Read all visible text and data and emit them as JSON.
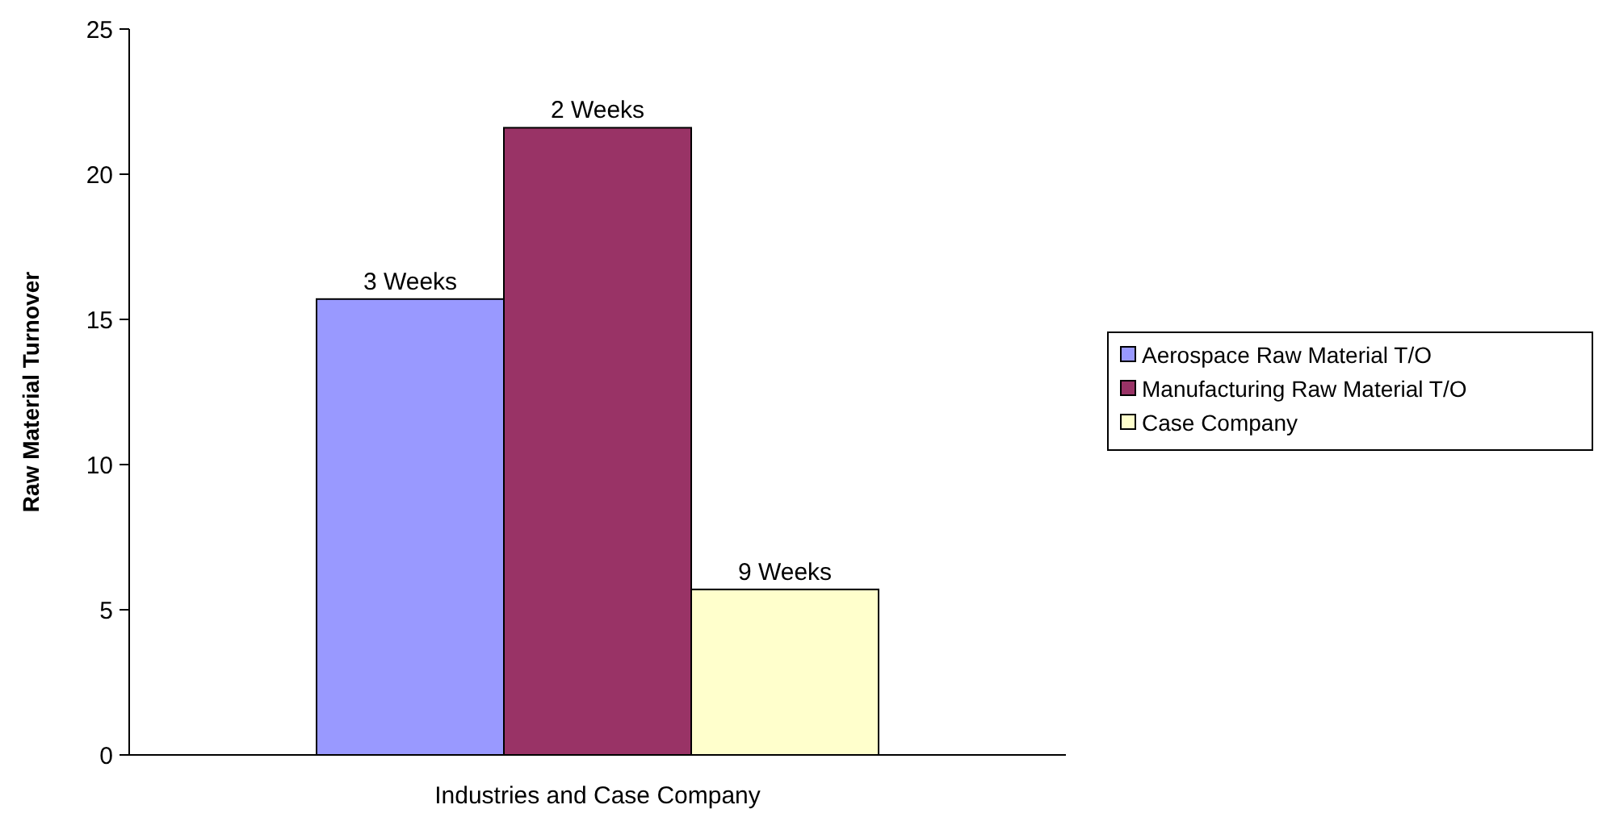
{
  "chart_data": {
    "type": "bar",
    "xlabel": "Industries and Case Company",
    "ylabel": "Raw Material Turnover",
    "categories": [
      null
    ],
    "series": [
      {
        "name": "Aerospace Raw Material T/O",
        "color": "#9999ff",
        "values": [
          15.7
        ]
      },
      {
        "name": "Manufacturing Raw Material T/O",
        "color": "#993366",
        "values": [
          21.6
        ]
      },
      {
        "name": "Case Company",
        "color": "#ffffcc",
        "values": [
          5.7
        ]
      }
    ],
    "annotations": [
      {
        "text": "3 Weeks",
        "y": 15.7
      },
      {
        "text": "2 Weeks",
        "y": 21.6
      },
      {
        "text": "9 Weeks",
        "y": 5.7
      }
    ],
    "ylim": [
      0,
      25
    ],
    "yticks": [
      0,
      5,
      10,
      15,
      20,
      25
    ],
    "grid": false,
    "legend": "right"
  }
}
